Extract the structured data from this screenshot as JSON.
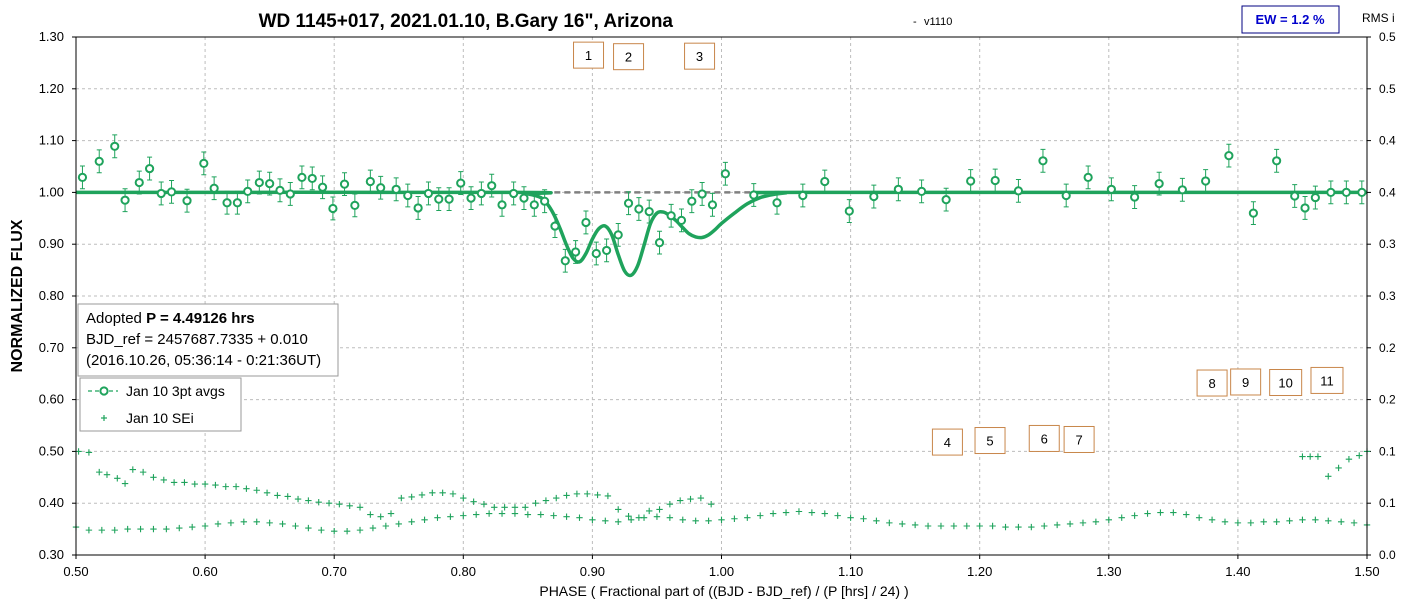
{
  "colors": {
    "series": "#1fa35c",
    "model": "#1fa35c",
    "baseline": "#808080",
    "grid": "#bdbdbd",
    "marker_border": "#c8864a",
    "ew_border": "#000080",
    "ew_text": "#0000cc"
  },
  "chart_data": {
    "type": "scatter",
    "title": "WD 1145+017, 2021.01.10, B.Gary 16\", Arizona",
    "title_suffix": "-",
    "version": "v1110",
    "xlabel": "PHASE ( Fractional part of ((BJD - BJD_ref) / (P [hrs] / 24) )",
    "ylabel": "NORMALIZED FLUX",
    "y2label": "RMS i",
    "xlim": [
      0.5,
      1.5
    ],
    "ylim": [
      0.3,
      1.3
    ],
    "y2lim": [
      0.0,
      0.5
    ],
    "x_ticks": [
      "0.50",
      "0.60",
      "0.70",
      "0.80",
      "0.90",
      "1.00",
      "1.10",
      "1.20",
      "1.30",
      "1.40",
      "1.50"
    ],
    "y_ticks": [
      "0.30",
      "0.40",
      "0.50",
      "0.60",
      "0.70",
      "0.80",
      "0.90",
      "1.00",
      "1.10",
      "1.20",
      "1.30"
    ],
    "y2_ticks": [
      "0.0",
      "0.1",
      "0.1",
      "0.2",
      "0.2",
      "0.3",
      "0.3",
      "0.4",
      "0.4",
      "0.5",
      "0.5"
    ],
    "grid": true,
    "ew_label": "EW = 1.2 %",
    "info": {
      "line1_prefix": "Adopted ",
      "line1_bold": "P = 4.49126 hrs",
      "line2": "BJD_ref = 2457687.7335 + 0.010",
      "line3": "(2016.10.26, 05:36:14 - 0:21:36UT)"
    },
    "legend_position": "left",
    "dip_markers": [
      {
        "label": "1",
        "x": 0.897,
        "y": 1.265
      },
      {
        "label": "2",
        "x": 0.928,
        "y": 1.262
      },
      {
        "label": "3",
        "x": 0.983,
        "y": 1.263
      },
      {
        "label": "4",
        "x": 1.175,
        "y": 0.518
      },
      {
        "label": "5",
        "x": 1.208,
        "y": 0.521
      },
      {
        "label": "6",
        "x": 1.25,
        "y": 0.525
      },
      {
        "label": "7",
        "x": 1.277,
        "y": 0.523
      },
      {
        "label": "8",
        "x": 1.38,
        "y": 0.632
      },
      {
        "label": "9",
        "x": 1.406,
        "y": 0.634
      },
      {
        "label": "10",
        "x": 1.437,
        "y": 0.633
      },
      {
        "label": "11",
        "x": 1.469,
        "y": 0.637
      }
    ],
    "series": [
      {
        "name": "Jan 10 3pt avgs",
        "marker": "circle",
        "x": [
          0.505,
          0.518,
          0.53,
          0.538,
          0.549,
          0.557,
          0.566,
          0.574,
          0.586,
          0.599,
          0.607,
          0.617,
          0.625,
          0.633,
          0.642,
          0.65,
          0.658,
          0.666,
          0.675,
          0.683,
          0.691,
          0.699,
          0.708,
          0.716,
          0.728,
          0.736,
          0.748,
          0.757,
          0.765,
          0.773,
          0.781,
          0.789,
          0.798,
          0.806,
          0.814,
          0.822,
          0.83,
          0.839,
          0.847,
          0.855,
          0.863,
          0.871,
          0.879,
          0.887,
          0.895,
          0.903,
          0.911,
          0.92,
          0.928,
          0.936,
          0.944,
          0.952,
          0.961,
          0.969,
          0.977,
          0.985,
          0.993,
          1.003,
          1.025,
          1.043,
          1.063,
          1.08,
          1.099,
          1.118,
          1.137,
          1.155,
          1.174,
          1.193,
          1.212,
          1.23,
          1.249,
          1.267,
          1.284,
          1.302,
          1.32,
          1.339,
          1.357,
          1.375,
          1.393,
          1.412,
          1.43,
          1.444,
          1.452,
          1.46,
          1.472,
          1.484,
          1.496
        ],
        "y": [
          1.029,
          1.06,
          1.089,
          0.985,
          1.019,
          1.046,
          0.998,
          1.001,
          0.984,
          1.056,
          1.008,
          0.98,
          0.98,
          1.002,
          1.019,
          1.017,
          1.004,
          0.997,
          1.029,
          1.027,
          1.01,
          0.969,
          1.016,
          0.975,
          1.021,
          1.009,
          1.006,
          0.994,
          0.97,
          0.998,
          0.987,
          0.987,
          1.018,
          0.989,
          0.998,
          1.013,
          0.976,
          0.998,
          0.989,
          0.976,
          0.983,
          0.935,
          0.868,
          0.885,
          0.942,
          0.882,
          0.888,
          0.918,
          0.979,
          0.968,
          0.963,
          0.903,
          0.955,
          0.946,
          0.983,
          0.997,
          0.976,
          1.036,
          0.995,
          0.98,
          0.994,
          1.021,
          0.964,
          0.992,
          1.006,
          1.002,
          0.986,
          1.022,
          1.023,
          1.003,
          1.061,
          0.994,
          1.029,
          1.006,
          0.991,
          1.017,
          1.005,
          1.022,
          1.071,
          0.96,
          1.061,
          0.993,
          0.97,
          0.99,
          1.0,
          1.0,
          1.0
        ],
        "yerr": 0.022
      },
      {
        "name": "Jan 10 SEi",
        "marker": "plus",
        "x": [
          0.502,
          0.51,
          0.518,
          0.524,
          0.532,
          0.538,
          0.544,
          0.552,
          0.56,
          0.568,
          0.576,
          0.584,
          0.592,
          0.6,
          0.608,
          0.616,
          0.624,
          0.632,
          0.64,
          0.648,
          0.656,
          0.664,
          0.672,
          0.68,
          0.688,
          0.696,
          0.704,
          0.712,
          0.72,
          0.728,
          0.736,
          0.744,
          0.752,
          0.76,
          0.768,
          0.776,
          0.784,
          0.792,
          0.8,
          0.808,
          0.816,
          0.824,
          0.832,
          0.84,
          0.848,
          0.856,
          0.864,
          0.872,
          0.88,
          0.888,
          0.896,
          0.904,
          0.912,
          0.92,
          0.928,
          0.936,
          0.944,
          0.952,
          0.96,
          0.968,
          0.976,
          0.984,
          0.992,
          1.45,
          1.456,
          1.462,
          1.47,
          1.478,
          1.486,
          1.494,
          1.5
        ],
        "y": [
          0.5,
          0.498,
          0.46,
          0.455,
          0.448,
          0.438,
          0.465,
          0.46,
          0.45,
          0.445,
          0.44,
          0.44,
          0.437,
          0.437,
          0.435,
          0.432,
          0.432,
          0.428,
          0.425,
          0.42,
          0.415,
          0.413,
          0.408,
          0.405,
          0.402,
          0.4,
          0.398,
          0.395,
          0.392,
          0.378,
          0.374,
          0.38,
          0.41,
          0.412,
          0.416,
          0.42,
          0.42,
          0.418,
          0.41,
          0.403,
          0.398,
          0.392,
          0.392,
          0.392,
          0.392,
          0.4,
          0.405,
          0.41,
          0.415,
          0.418,
          0.418,
          0.416,
          0.414,
          0.388,
          0.375,
          0.372,
          0.385,
          0.388,
          0.398,
          0.405,
          0.408,
          0.41,
          0.398,
          0.49,
          0.49,
          0.49,
          0.452,
          0.468,
          0.485,
          0.492,
          0.5
        ]
      },
      {
        "name": "",
        "marker": "plus",
        "axis": "right",
        "x": [
          0.5,
          0.51,
          0.52,
          0.53,
          0.54,
          0.55,
          0.56,
          0.57,
          0.58,
          0.59,
          0.6,
          0.61,
          0.62,
          0.63,
          0.64,
          0.65,
          0.66,
          0.67,
          0.68,
          0.69,
          0.7,
          0.71,
          0.72,
          0.73,
          0.74,
          0.75,
          0.76,
          0.77,
          0.78,
          0.79,
          0.8,
          0.81,
          0.82,
          0.83,
          0.84,
          0.85,
          0.86,
          0.87,
          0.88,
          0.89,
          0.9,
          0.91,
          0.92,
          0.93,
          0.94,
          0.95,
          0.96,
          0.97,
          0.98,
          0.99,
          1.0,
          1.01,
          1.02,
          1.03,
          1.04,
          1.05,
          1.06,
          1.07,
          1.08,
          1.09,
          1.1,
          1.11,
          1.12,
          1.13,
          1.14,
          1.15,
          1.16,
          1.17,
          1.18,
          1.19,
          1.2,
          1.21,
          1.22,
          1.23,
          1.24,
          1.25,
          1.26,
          1.27,
          1.28,
          1.29,
          1.3,
          1.31,
          1.32,
          1.33,
          1.34,
          1.35,
          1.36,
          1.37,
          1.38,
          1.39,
          1.4,
          1.41,
          1.42,
          1.43,
          1.44,
          1.45,
          1.46,
          1.47,
          1.48,
          1.49,
          1.5
        ],
        "y": [
          0.027,
          0.024,
          0.024,
          0.024,
          0.025,
          0.025,
          0.025,
          0.025,
          0.026,
          0.027,
          0.028,
          0.03,
          0.031,
          0.032,
          0.032,
          0.031,
          0.03,
          0.028,
          0.026,
          0.024,
          0.023,
          0.023,
          0.024,
          0.026,
          0.028,
          0.03,
          0.032,
          0.034,
          0.036,
          0.037,
          0.038,
          0.039,
          0.04,
          0.04,
          0.04,
          0.039,
          0.039,
          0.038,
          0.037,
          0.036,
          0.034,
          0.033,
          0.032,
          0.034,
          0.036,
          0.037,
          0.036,
          0.034,
          0.033,
          0.033,
          0.034,
          0.035,
          0.036,
          0.038,
          0.04,
          0.041,
          0.042,
          0.041,
          0.04,
          0.038,
          0.036,
          0.035,
          0.033,
          0.031,
          0.03,
          0.029,
          0.028,
          0.028,
          0.028,
          0.028,
          0.028,
          0.028,
          0.027,
          0.027,
          0.027,
          0.028,
          0.029,
          0.03,
          0.031,
          0.032,
          0.034,
          0.036,
          0.038,
          0.04,
          0.041,
          0.041,
          0.039,
          0.036,
          0.034,
          0.032,
          0.031,
          0.031,
          0.032,
          0.032,
          0.033,
          0.034,
          0.034,
          0.033,
          0.032,
          0.031,
          0.029
        ]
      }
    ],
    "model_curve": {
      "x": [
        0.5,
        0.84,
        0.85,
        0.86,
        0.865,
        0.87,
        0.875,
        0.88,
        0.885,
        0.89,
        0.895,
        0.9,
        0.905,
        0.91,
        0.915,
        0.92,
        0.925,
        0.93,
        0.935,
        0.94,
        0.945,
        0.95,
        0.955,
        0.96,
        0.965,
        0.97,
        0.975,
        0.98,
        0.985,
        0.99,
        0.995,
        1.0,
        1.01,
        1.02,
        1.03,
        1.04,
        1.05,
        1.06,
        1.5
      ],
      "y": [
        1.0,
        1.0,
        0.997,
        0.99,
        0.978,
        0.958,
        0.93,
        0.898,
        0.873,
        0.866,
        0.882,
        0.91,
        0.93,
        0.935,
        0.918,
        0.88,
        0.848,
        0.84,
        0.858,
        0.898,
        0.94,
        0.96,
        0.962,
        0.955,
        0.945,
        0.932,
        0.92,
        0.914,
        0.913,
        0.918,
        0.928,
        0.94,
        0.96,
        0.978,
        0.99,
        0.996,
        0.999,
        1.0,
        1.0
      ]
    },
    "baseline": {
      "y": 1.0,
      "x_start": 0.855,
      "x_end": 1.06
    }
  }
}
